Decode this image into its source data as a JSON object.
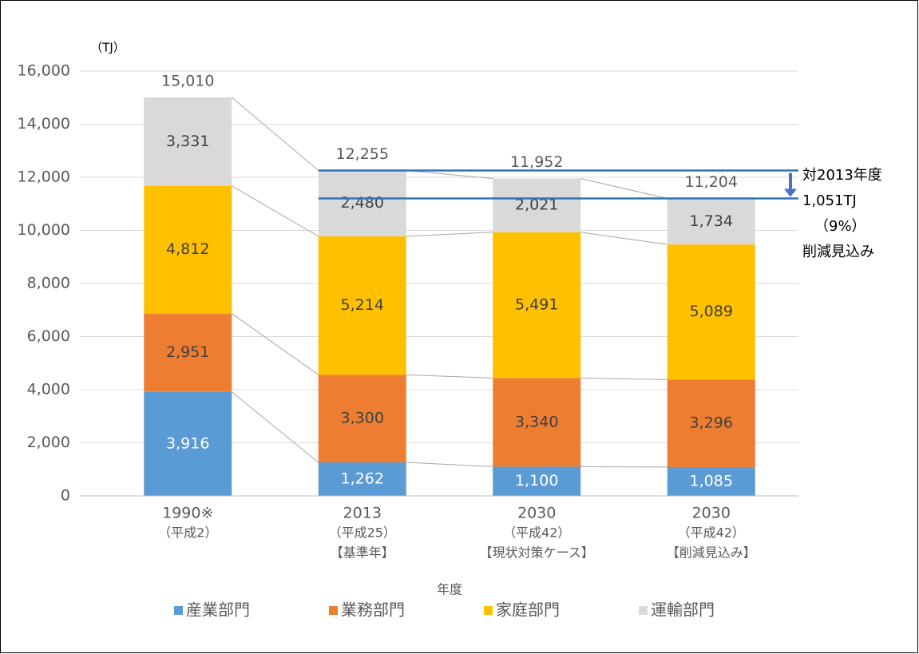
{
  "chart_data": {
    "type": "stacked_bar",
    "unit_label": "（TJ）",
    "x_label": "年度",
    "categories": [
      [
        "1990※",
        "（平成2）"
      ],
      [
        "2013",
        "（平成25）",
        "【基準年】"
      ],
      [
        "2030",
        "（平成42）",
        "【現状対策ケース】"
      ],
      [
        "2030",
        "（平成42）",
        "【削減見込み】"
      ]
    ],
    "series": [
      {
        "name": "産業部門",
        "color": "#5b9bd5",
        "label_color": "#ffffff",
        "values": [
          3916,
          1262,
          1100,
          1085
        ],
        "value_labels": [
          "3,916",
          "1,262",
          "1,100",
          "1,085"
        ]
      },
      {
        "name": "業務部門",
        "color": "#ed7d31",
        "label_color": "#404040",
        "values": [
          2951,
          3300,
          3340,
          3296
        ],
        "value_labels": [
          "2,951",
          "3,300",
          "3,340",
          "3,296"
        ]
      },
      {
        "name": "家庭部門",
        "color": "#ffc000",
        "label_color": "#404040",
        "values": [
          4812,
          5214,
          5491,
          5089
        ],
        "value_labels": [
          "4,812",
          "5,214",
          "5,491",
          "5,089"
        ]
      },
      {
        "name": "運輸部門",
        "color": "#d9d9d9",
        "label_color": "#404040",
        "values": [
          3331,
          2480,
          2021,
          1734
        ],
        "value_labels": [
          "3,331",
          "2,480",
          "2,021",
          "1,734"
        ]
      }
    ],
    "totals": [
      15010,
      12255,
      11952,
      11204
    ],
    "totals_labels": [
      "15,010",
      "12,255",
      "11,952",
      "11,204"
    ],
    "annotation": [
      "対2013年度",
      "1,051TJ",
      "（9%）",
      "削減見込み"
    ],
    "ylim": [
      0,
      16000
    ],
    "yticks": [
      0,
      {
        "value": 2000,
        "label": "2,000"
      },
      {
        "value": 4000,
        "label": "4,000"
      },
      {
        "value": 6000,
        "label": "6,000"
      },
      {
        "value": 8000,
        "label": "8,000"
      },
      {
        "value": 10000,
        "label": "10,000"
      },
      {
        "value": 12000,
        "label": "12,000"
      },
      {
        "value": 14000,
        "label": "14,000"
      },
      {
        "value": 16000,
        "label": "16,000"
      }
    ],
    "grid": true,
    "legend": "bottom"
  }
}
